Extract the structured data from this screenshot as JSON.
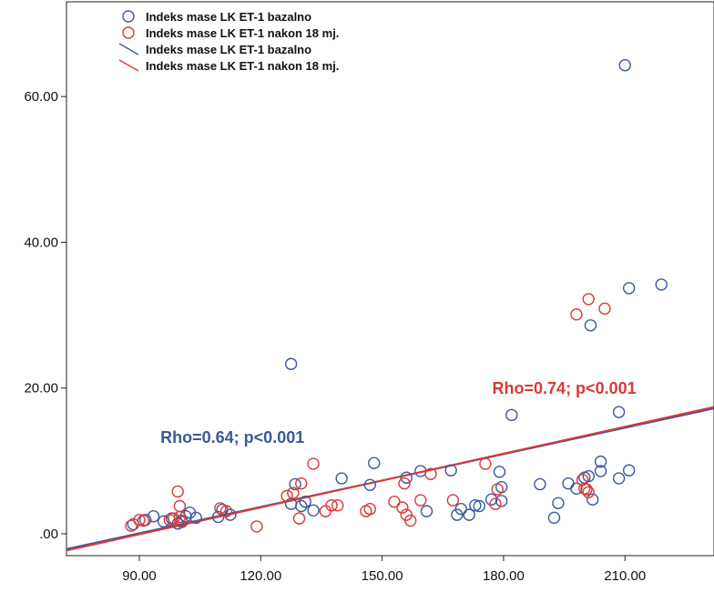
{
  "chart_data": {
    "type": "scatter",
    "xlabel": "",
    "ylabel": "",
    "xlim": [
      72,
      232
    ],
    "ylim": [
      -3,
      73
    ],
    "x_ticks": [
      {
        "value": 90,
        "label": "90.00"
      },
      {
        "value": 120,
        "label": "120.00"
      },
      {
        "value": 150,
        "label": "150.00"
      },
      {
        "value": 180,
        "label": "180.00"
      },
      {
        "value": 210,
        "label": "210.00"
      }
    ],
    "y_ticks": [
      {
        "value": 0,
        "label": ".00"
      },
      {
        "value": 20,
        "label": "20.00"
      },
      {
        "value": 40,
        "label": "40.00"
      },
      {
        "value": 60,
        "label": "60.00"
      }
    ],
    "grid": false,
    "legend_position": "top-left",
    "legend": [
      {
        "label": "Indeks mase LK ET-1 bazalno",
        "marker": "circle",
        "color": "#3b5a9a"
      },
      {
        "label": "Indeks mase LK ET-1 nakon 18 mj.",
        "marker": "circle",
        "color": "#d93a36"
      },
      {
        "label": "Indeks mase LK ET-1 bazalno",
        "marker": "line",
        "color": "#3b5a9a"
      },
      {
        "label": "Indeks mase LK ET-1 nakon 18 mj.",
        "marker": "line",
        "color": "#d93a36"
      }
    ],
    "series": [
      {
        "name": "Indeks mase LK ET-1 bazalno",
        "color": "#3b5a9a",
        "points": [
          [
            88.5,
            1.3
          ],
          [
            91.5,
            1.9
          ],
          [
            93.5,
            2.4
          ],
          [
            96,
            1.7
          ],
          [
            98,
            2.1
          ],
          [
            99.5,
            1.4
          ],
          [
            100.5,
            1.8
          ],
          [
            101.5,
            2.4
          ],
          [
            102.5,
            2.9
          ],
          [
            104,
            2.2
          ],
          [
            109.5,
            2.3
          ],
          [
            110.5,
            3.3
          ],
          [
            112.5,
            2.6
          ],
          [
            127.5,
            23.3
          ],
          [
            127.5,
            4.1
          ],
          [
            128.5,
            6.8
          ],
          [
            130,
            3.8
          ],
          [
            131,
            4.4
          ],
          [
            133,
            3.2
          ],
          [
            140,
            7.6
          ],
          [
            147,
            6.7
          ],
          [
            148,
            9.7
          ],
          [
            156,
            7.7
          ],
          [
            159.5,
            8.6
          ],
          [
            161,
            3.1
          ],
          [
            167,
            8.7
          ],
          [
            168.5,
            2.6
          ],
          [
            169.5,
            3.4
          ],
          [
            171.5,
            2.6
          ],
          [
            173,
            3.9
          ],
          [
            174,
            3.8
          ],
          [
            177,
            4.7
          ],
          [
            179,
            8.5
          ],
          [
            179.5,
            6.4
          ],
          [
            179.5,
            4.5
          ],
          [
            182,
            16.3
          ],
          [
            189,
            6.8
          ],
          [
            192.5,
            2.2
          ],
          [
            193.5,
            4.2
          ],
          [
            196,
            6.9
          ],
          [
            198,
            6.2
          ],
          [
            200,
            7.7
          ],
          [
            201,
            7.9
          ],
          [
            201.5,
            28.6
          ],
          [
            202,
            4.7
          ],
          [
            204,
            9.9
          ],
          [
            204,
            8.6
          ],
          [
            208.5,
            16.7
          ],
          [
            208.5,
            7.6
          ],
          [
            210,
            64.3
          ],
          [
            211,
            33.7
          ],
          [
            211,
            8.7
          ],
          [
            219,
            34.2
          ]
        ]
      },
      {
        "name": "Indeks mase LK ET-1 nakon 18 mj.",
        "color": "#d93a36",
        "points": [
          [
            88,
            1.1
          ],
          [
            90,
            1.9
          ],
          [
            91,
            1.8
          ],
          [
            97.5,
            1.9
          ],
          [
            98.5,
            2.1
          ],
          [
            99.5,
            5.8
          ],
          [
            100,
            2.3
          ],
          [
            100,
            3.8
          ],
          [
            100.5,
            1.6
          ],
          [
            110,
            3.5
          ],
          [
            111.5,
            3.1
          ],
          [
            119,
            1
          ],
          [
            126.5,
            5.2
          ],
          [
            128,
            5.6
          ],
          [
            129.5,
            2.1
          ],
          [
            130,
            6.9
          ],
          [
            133,
            9.6
          ],
          [
            136,
            3.1
          ],
          [
            137.5,
            3.9
          ],
          [
            139,
            3.9
          ],
          [
            146,
            3.1
          ],
          [
            147,
            3.4
          ],
          [
            153,
            4.4
          ],
          [
            155,
            3.6
          ],
          [
            155.5,
            6.9
          ],
          [
            156,
            2.6
          ],
          [
            157,
            1.8
          ],
          [
            159.5,
            4.6
          ],
          [
            162,
            8.2
          ],
          [
            167.5,
            4.6
          ],
          [
            175.5,
            9.6
          ],
          [
            178,
            4.1
          ],
          [
            178.5,
            6.1
          ],
          [
            198,
            30.1
          ],
          [
            199.5,
            7.4
          ],
          [
            200,
            6.2
          ],
          [
            200.5,
            6.1
          ],
          [
            201,
            32.2
          ],
          [
            201,
            5.7
          ],
          [
            205,
            30.9
          ]
        ]
      }
    ],
    "fit_lines": [
      {
        "name": "Indeks mase LK ET-1 bazalno",
        "color": "#3b5a9a",
        "x": [
          72,
          232
        ],
        "y": [
          -2.1,
          17.2
        ],
        "annotation": "Rho=0.64; p<0.001",
        "label_at": [
          113,
          12.5
        ]
      },
      {
        "name": "Indeks mase LK ET-1 nakon 18 mj.",
        "color": "#d93a36",
        "x": [
          72,
          232
        ],
        "y": [
          -2.3,
          17.4
        ],
        "annotation": "Rho=0.74; p<0.001",
        "label_at": [
          195,
          19.2
        ]
      }
    ]
  }
}
